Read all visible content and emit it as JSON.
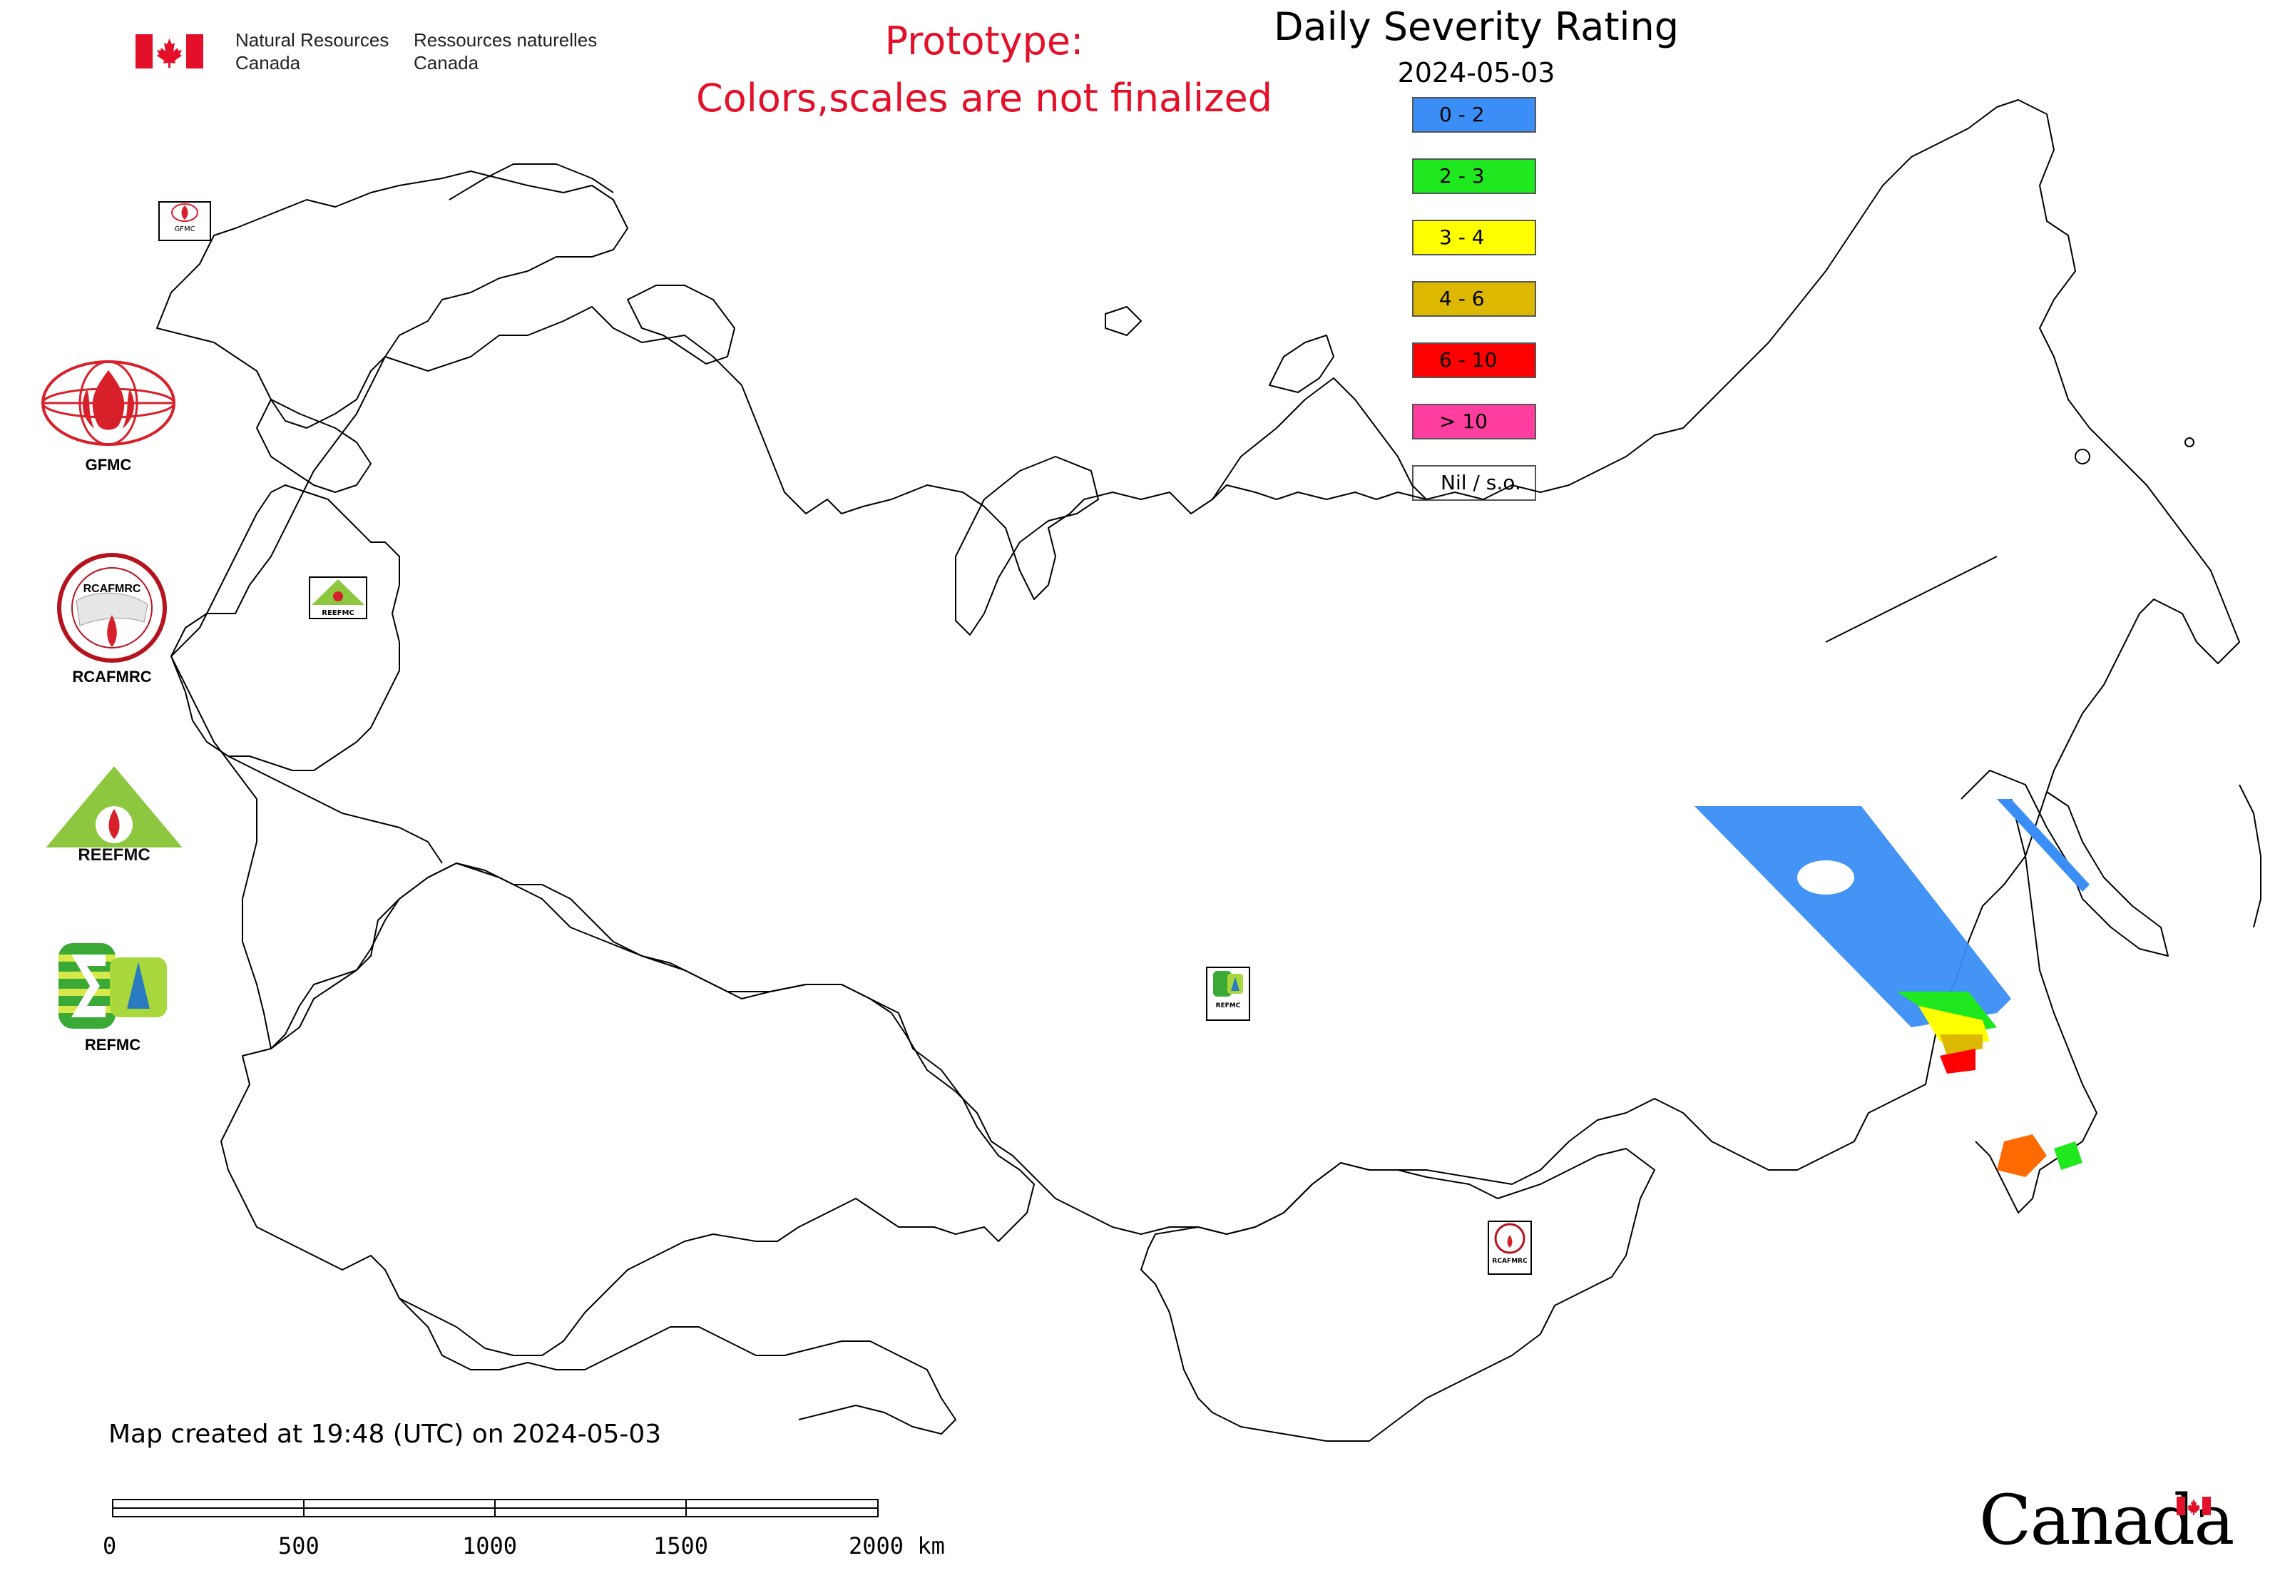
{
  "header": {
    "agency_en_line1": "Natural Resources",
    "agency_en_line2": "Canada",
    "agency_fr_line1": "Ressources naturelles",
    "agency_fr_line2": "Canada",
    "prototype_line1": "Prototype:",
    "prototype_line2": "Colors,scales are not finalized",
    "title": "Daily Severity Rating",
    "date": "2024-05-03"
  },
  "legend": {
    "items": [
      {
        "label": "0 - 2",
        "color": "#3a8ef5"
      },
      {
        "label": "2 - 3",
        "color": "#1fe81f"
      },
      {
        "label": "3 - 4",
        "color": "#ffff00"
      },
      {
        "label": "4 - 6",
        "color": "#dcb800"
      },
      {
        "label": "6 - 10",
        "color": "#ff0000"
      },
      {
        "label": "> 10",
        "color": "#ff3ea0"
      },
      {
        "label": "Nil / s.o.",
        "color": "#ffffff"
      }
    ]
  },
  "logos": {
    "gfmc": "GFMC",
    "rcafmrc": "RCAFMRC",
    "reefmc": "REEFMC",
    "refmc": "REFMC",
    "rcafmrc_badge": "RCAFMRC",
    "gfmc_badge": "GFMC",
    "reefmc_badge": "REEFMC",
    "refmc_badge": "REFMC"
  },
  "footer": {
    "map_created": "Map created at 19:48 (UTC) on 2024-05-03",
    "scale_ticks": [
      "0",
      "500",
      "1000",
      "1500",
      "2000 km"
    ],
    "canada_wordmark": "Canada"
  },
  "colors": {
    "prototype_text": "#e4102a",
    "canada_red": "#e4102a",
    "map_outline": "#000000"
  }
}
